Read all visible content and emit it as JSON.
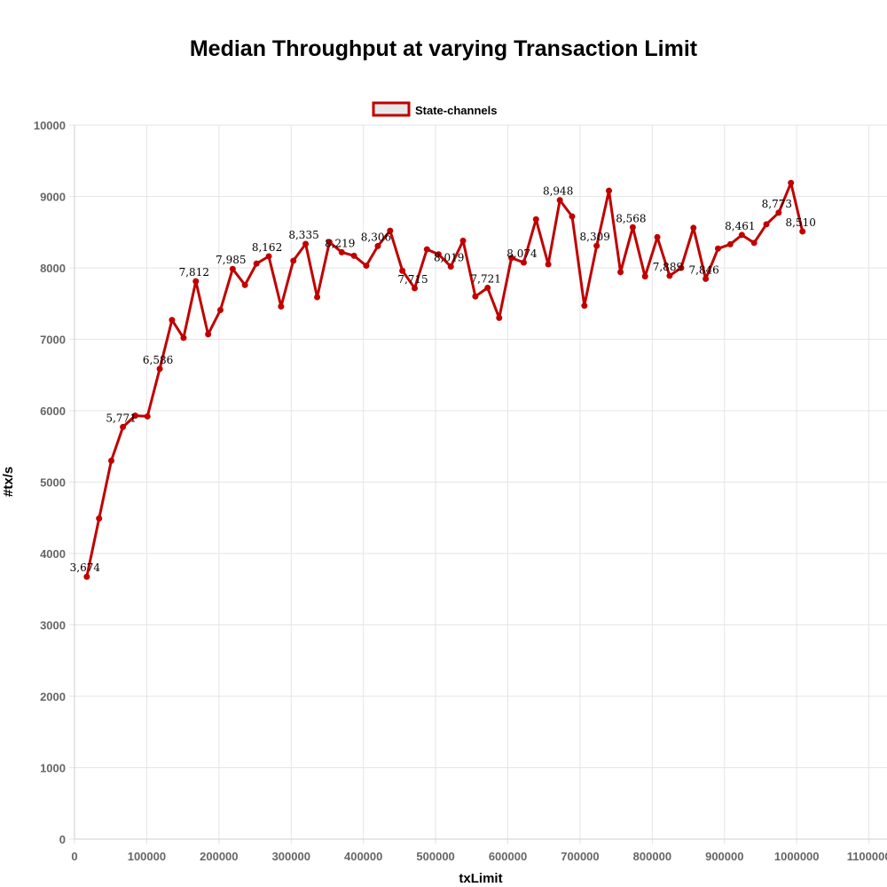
{
  "chart_data": {
    "type": "line",
    "title": "Median Throughput at varying Transaction Limit",
    "xlabel": "txLimit",
    "ylabel": "#tx/s",
    "xlim": [
      0,
      1125000
    ],
    "ylim": [
      0,
      10000
    ],
    "x_ticks": [
      "0",
      "100000",
      "200000",
      "300000",
      "400000",
      "500000",
      "600000",
      "700000",
      "800000",
      "900000",
      "1000000",
      "1100000"
    ],
    "y_ticks": [
      "0",
      "1000",
      "2000",
      "3000",
      "4000",
      "5000",
      "6000",
      "7000",
      "8000",
      "9000",
      "10000"
    ],
    "grid": true,
    "legend_position": "top-center",
    "series": [
      {
        "name": "State-channels",
        "color": "#c00000",
        "points": [
          {
            "x": 17000,
            "y": 3674,
            "label": "3,674"
          },
          {
            "x": 34000,
            "y": 4490
          },
          {
            "x": 51000,
            "y": 5300
          },
          {
            "x": 67000,
            "y": 5771,
            "label": "5,771"
          },
          {
            "x": 84000,
            "y": 5930
          },
          {
            "x": 101000,
            "y": 5920
          },
          {
            "x": 118000,
            "y": 6586,
            "label": "6,586"
          },
          {
            "x": 135000,
            "y": 7270
          },
          {
            "x": 151000,
            "y": 7020
          },
          {
            "x": 168000,
            "y": 7812,
            "label": "7,812"
          },
          {
            "x": 185000,
            "y": 7070
          },
          {
            "x": 202000,
            "y": 7410
          },
          {
            "x": 219000,
            "y": 7985,
            "label": "7,985"
          },
          {
            "x": 236000,
            "y": 7760
          },
          {
            "x": 252000,
            "y": 8060
          },
          {
            "x": 269000,
            "y": 8162,
            "label": "8,162"
          },
          {
            "x": 286000,
            "y": 7460
          },
          {
            "x": 303000,
            "y": 8100
          },
          {
            "x": 320000,
            "y": 8335,
            "label": "8,335"
          },
          {
            "x": 336000,
            "y": 7590
          },
          {
            "x": 353000,
            "y": 8360
          },
          {
            "x": 370000,
            "y": 8219,
            "label": "8,219"
          },
          {
            "x": 387000,
            "y": 8170
          },
          {
            "x": 404000,
            "y": 8030
          },
          {
            "x": 420000,
            "y": 8306,
            "label": "8,306"
          },
          {
            "x": 437000,
            "y": 8520
          },
          {
            "x": 454000,
            "y": 7960
          },
          {
            "x": 471000,
            "y": 7715,
            "label": "7,715"
          },
          {
            "x": 488000,
            "y": 8260
          },
          {
            "x": 504000,
            "y": 8190
          },
          {
            "x": 521000,
            "y": 8019,
            "label": "8,019"
          },
          {
            "x": 538000,
            "y": 8380
          },
          {
            "x": 555000,
            "y": 7600
          },
          {
            "x": 572000,
            "y": 7721,
            "label": "7,721"
          },
          {
            "x": 588000,
            "y": 7300
          },
          {
            "x": 605000,
            "y": 8140
          },
          {
            "x": 622000,
            "y": 8074,
            "label": "8,074"
          },
          {
            "x": 639000,
            "y": 8680
          },
          {
            "x": 656000,
            "y": 8050
          },
          {
            "x": 672000,
            "y": 8948,
            "label": "8,948"
          },
          {
            "x": 689000,
            "y": 8720
          },
          {
            "x": 706000,
            "y": 7470
          },
          {
            "x": 723000,
            "y": 8309,
            "label": "8,309"
          },
          {
            "x": 740000,
            "y": 9080
          },
          {
            "x": 756000,
            "y": 7940
          },
          {
            "x": 773000,
            "y": 8568,
            "label": "8,568"
          },
          {
            "x": 790000,
            "y": 7880
          },
          {
            "x": 807000,
            "y": 8430
          },
          {
            "x": 824000,
            "y": 7889,
            "label": "7,889"
          },
          {
            "x": 840000,
            "y": 8000
          },
          {
            "x": 857000,
            "y": 8560
          },
          {
            "x": 874000,
            "y": 7846,
            "label": "7,846"
          },
          {
            "x": 891000,
            "y": 8270
          },
          {
            "x": 908000,
            "y": 8330
          },
          {
            "x": 924000,
            "y": 8461,
            "label": "8,461"
          },
          {
            "x": 941000,
            "y": 8350
          },
          {
            "x": 958000,
            "y": 8610
          },
          {
            "x": 975000,
            "y": 8773,
            "label": "8,773"
          },
          {
            "x": 992000,
            "y": 9190
          },
          {
            "x": 1008000,
            "y": 8510,
            "label": "8,510"
          }
        ]
      }
    ]
  }
}
